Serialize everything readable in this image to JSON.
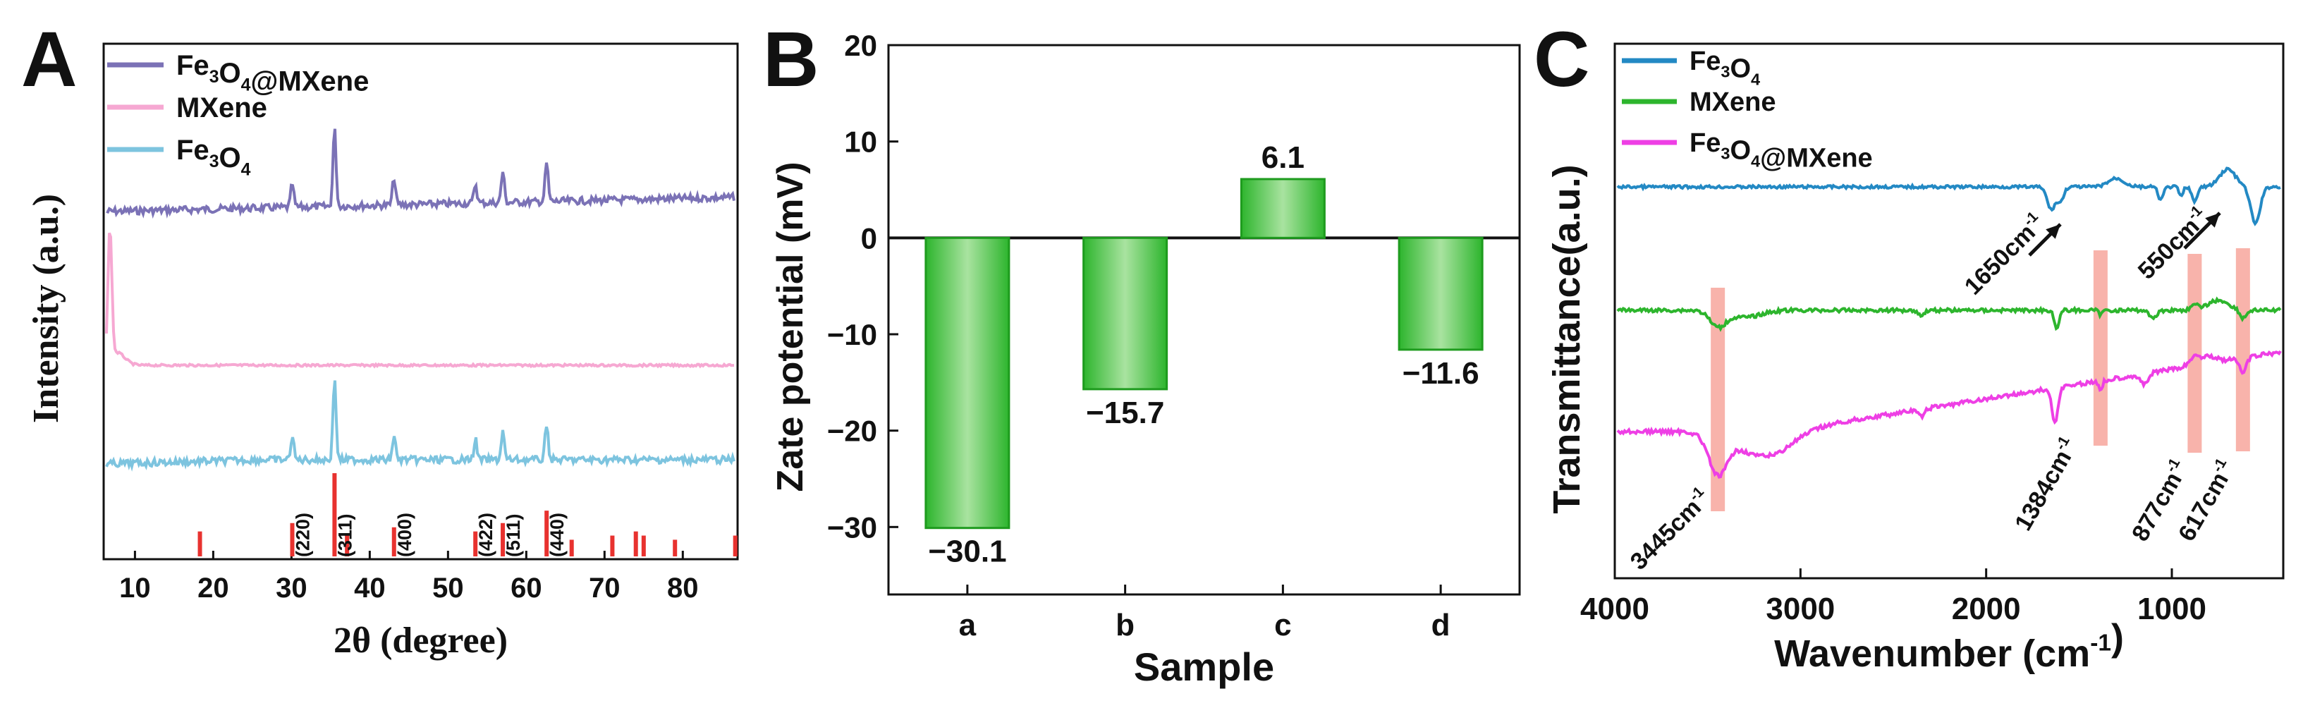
{
  "chart_data": [
    {
      "panel": "A",
      "type": "line",
      "xlabel": "2θ (degree)",
      "ylabel": "Intensity (a.u.)",
      "xlim": [
        6,
        87
      ],
      "xticks": [
        "10",
        "20",
        "30",
        "40",
        "50",
        "60",
        "70",
        "80"
      ],
      "legend_position": "top-left",
      "series": [
        {
          "name": "Fe₃O₄@MXene",
          "color": "#7B72B6",
          "peaks": [
            {
              "x": 30.1,
              "h": 0.3
            },
            {
              "x": 35.5,
              "h": 1.0
            },
            {
              "x": 43.1,
              "h": 0.35
            },
            {
              "x": 53.5,
              "h": 0.25
            },
            {
              "x": 57.0,
              "h": 0.4
            },
            {
              "x": 62.6,
              "h": 0.5
            }
          ]
        },
        {
          "name": "MXene",
          "color": "#F6A8D2",
          "peaks": [
            {
              "x": 6.8,
              "h": 1.0
            }
          ]
        },
        {
          "name": "Fe₃O₄",
          "color": "#7DC4DF",
          "peaks": [
            {
              "x": 30.1,
              "h": 0.3
            },
            {
              "x": 35.5,
              "h": 1.0
            },
            {
              "x": 43.1,
              "h": 0.3
            },
            {
              "x": 53.5,
              "h": 0.25
            },
            {
              "x": 57.0,
              "h": 0.35
            },
            {
              "x": 62.6,
              "h": 0.45
            }
          ]
        }
      ],
      "reference_lines": {
        "color": "#E8322F",
        "positions": [
          18.3,
          30.1,
          35.5,
          37.1,
          43.1,
          53.5,
          57.0,
          62.6,
          65.8,
          71.0,
          74.0,
          75.0,
          79.0,
          86.7
        ],
        "heights": [
          0.3,
          0.4,
          1.0,
          0.25,
          0.35,
          0.3,
          0.4,
          0.55,
          0.2,
          0.25,
          0.3,
          0.25,
          0.2,
          0.25
        ],
        "hkl_labels": [
          {
            "x": 30.1,
            "label": "(220)"
          },
          {
            "x": 35.5,
            "label": "(311)"
          },
          {
            "x": 43.1,
            "label": "(400)"
          },
          {
            "x": 53.5,
            "label": "(422)"
          },
          {
            "x": 57.0,
            "label": "(511)"
          },
          {
            "x": 62.6,
            "label": "(440)"
          }
        ]
      }
    },
    {
      "panel": "B",
      "type": "bar",
      "xlabel": "Sample",
      "ylabel": "Zate potential (mV)",
      "ylim": [
        -37,
        20
      ],
      "yticks": [
        20,
        10,
        0,
        -10,
        -20,
        -30
      ],
      "categories": [
        "a",
        "b",
        "c",
        "d"
      ],
      "values": [
        -30.1,
        -15.7,
        6.1,
        -11.6
      ],
      "data_labels": [
        "−30.1",
        "−15.7",
        "6.1",
        "−11.6"
      ],
      "bar_color": "#2DB52D"
    },
    {
      "panel": "C",
      "type": "line",
      "xlabel": "Wavenumber (cm⁻¹)",
      "ylabel": "Transmittance(a.u.)",
      "xlim": [
        4000,
        400
      ],
      "xticks": [
        4000,
        3000,
        2000,
        1000
      ],
      "legend_position": "top-left",
      "series": [
        {
          "name": "Fe₃O₄",
          "color": "#2389C4"
        },
        {
          "name": "MXene",
          "color": "#2DB52D"
        },
        {
          "name": "Fe₃O₄@MXene",
          "color": "#EE3FE5"
        }
      ],
      "highlight_bands": [
        3445,
        1384,
        877,
        617
      ],
      "annotations": [
        {
          "label": "1650cm⁻¹",
          "x": 1650
        },
        {
          "label": "550cm⁻¹",
          "x": 550
        },
        {
          "label": "3445cm⁻¹",
          "x": 3445
        },
        {
          "label": "1384cm⁻¹",
          "x": 1384
        },
        {
          "label": "877cm⁻¹",
          "x": 877
        },
        {
          "label": "617cm⁻¹",
          "x": 617
        }
      ]
    }
  ],
  "panel_letters": [
    "A",
    "B",
    "C"
  ]
}
